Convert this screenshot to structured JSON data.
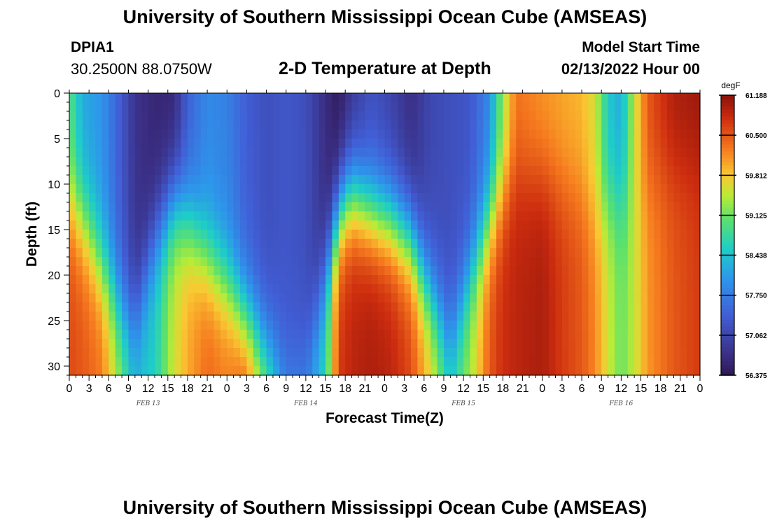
{
  "header": {
    "title": "University of Southern Mississippi Ocean Cube (AMSEAS)",
    "station": "DPIA1",
    "coordinates": "30.2500N  88.0750W",
    "subtitle": "2-D Temperature at Depth",
    "model_start_label": "Model Start Time",
    "model_start_value": "02/13/2022 Hour 00"
  },
  "footer": {
    "title": "University of Southern Mississippi Ocean Cube (AMSEAS)"
  },
  "chart_data": {
    "type": "heatmap",
    "title": "2-D Temperature at Depth",
    "xlabel": "Forecast Time(Z)",
    "ylabel": "Depth (ft)",
    "xlim": [
      0,
      96
    ],
    "ylim": [
      0,
      31
    ],
    "x_tick_values": [
      0,
      3,
      6,
      9,
      12,
      15,
      18,
      21,
      24,
      27,
      30,
      33,
      36,
      39,
      42,
      45,
      48,
      51,
      54,
      57,
      60,
      63,
      66,
      69,
      72,
      75,
      78,
      81,
      84,
      87,
      90,
      93,
      96
    ],
    "x_tick_labels": [
      "0",
      "3",
      "6",
      "9",
      "12",
      "15",
      "18",
      "21",
      "0",
      "3",
      "6",
      "9",
      "12",
      "15",
      "18",
      "21",
      "0",
      "3",
      "6",
      "9",
      "12",
      "15",
      "18",
      "21",
      "0",
      "3",
      "6",
      "9",
      "12",
      "15",
      "18",
      "21",
      "0"
    ],
    "y_tick_values": [
      0,
      5,
      10,
      15,
      20,
      25,
      30
    ],
    "y_tick_labels": [
      "0",
      "5",
      "10",
      "15",
      "20",
      "25",
      "30"
    ],
    "date_labels": [
      {
        "label": "FEB 13",
        "hour": 12
      },
      {
        "label": "FEB 14",
        "hour": 36
      },
      {
        "label": "FEB 15",
        "hour": 60
      },
      {
        "label": "FEB 16",
        "hour": 84
      }
    ],
    "colorbar": {
      "unit": "degF",
      "tick_values": [
        61.188,
        60.5,
        59.812,
        59.125,
        58.438,
        57.75,
        57.062,
        56.375
      ],
      "tick_labels": [
        "61.188",
        "60.500",
        "59.812",
        "59.125",
        "58.438",
        "57.750",
        "57.062",
        "56.375"
      ],
      "range": [
        56.2,
        61.3
      ]
    },
    "time_step_hours": 1,
    "depths_ft": [
      0,
      1,
      2,
      3,
      4,
      5,
      6,
      7,
      8,
      9,
      10,
      11,
      12,
      13,
      14,
      15,
      16,
      17,
      18,
      19,
      20,
      21,
      22,
      23,
      24,
      25,
      26,
      27,
      28,
      29,
      30,
      31
    ],
    "temperature_profiles_degF": [
      {
        "hour": 0,
        "surface": 59.0,
        "thermocline_ft": 12,
        "bottom": 60.6
      },
      {
        "hour": 2,
        "surface": 58.2,
        "thermocline_ft": 14,
        "bottom": 60.5
      },
      {
        "hour": 5,
        "surface": 58.0,
        "thermocline_ft": 19,
        "bottom": 60.3
      },
      {
        "hour": 8,
        "surface": 57.3,
        "thermocline_ft": 24,
        "bottom": 59.2
      },
      {
        "hour": 10,
        "surface": 56.8,
        "thermocline_ft": 25,
        "bottom": 58.4
      },
      {
        "hour": 13,
        "surface": 56.6,
        "thermocline_ft": 16,
        "bottom": 58.6
      },
      {
        "hour": 16,
        "surface": 56.6,
        "thermocline_ft": 12,
        "bottom": 59.6
      },
      {
        "hour": 18,
        "surface": 57.4,
        "thermocline_ft": 14,
        "bottom": 60.0
      },
      {
        "hour": 21,
        "surface": 57.9,
        "thermocline_ft": 18,
        "bottom": 60.4
      },
      {
        "hour": 24,
        "surface": 57.8,
        "thermocline_ft": 21,
        "bottom": 60.3
      },
      {
        "hour": 27,
        "surface": 57.4,
        "thermocline_ft": 25,
        "bottom": 60.6
      },
      {
        "hour": 30,
        "surface": 57.2,
        "thermocline_ft": 28,
        "bottom": 59.4
      },
      {
        "hour": 33,
        "surface": 57.3,
        "thermocline_ft": 30,
        "bottom": 58.0
      },
      {
        "hour": 36,
        "surface": 57.2,
        "thermocline_ft": 29,
        "bottom": 57.9
      },
      {
        "hour": 39,
        "surface": 56.7,
        "thermocline_ft": 20,
        "bottom": 58.7
      },
      {
        "hour": 41,
        "surface": 56.4,
        "thermocline_ft": 13,
        "bottom": 60.7
      },
      {
        "hour": 43,
        "surface": 56.8,
        "thermocline_ft": 11,
        "bottom": 60.9
      },
      {
        "hour": 46,
        "surface": 57.2,
        "thermocline_ft": 13,
        "bottom": 61.0
      },
      {
        "hour": 49,
        "surface": 57.0,
        "thermocline_ft": 14,
        "bottom": 60.9
      },
      {
        "hour": 52,
        "surface": 56.7,
        "thermocline_ft": 16,
        "bottom": 60.6
      },
      {
        "hour": 55,
        "surface": 57.1,
        "thermocline_ft": 22,
        "bottom": 59.8
      },
      {
        "hour": 58,
        "surface": 57.2,
        "thermocline_ft": 27,
        "bottom": 58.7
      },
      {
        "hour": 61,
        "surface": 57.3,
        "thermocline_ft": 20,
        "bottom": 59.4
      },
      {
        "hour": 64,
        "surface": 57.9,
        "thermocline_ft": 14,
        "bottom": 60.5
      },
      {
        "hour": 66,
        "surface": 59.3,
        "thermocline_ft": 11,
        "bottom": 60.8
      },
      {
        "hour": 68,
        "surface": 60.3,
        "thermocline_ft": 9,
        "bottom": 60.9
      },
      {
        "hour": 72,
        "surface": 60.1,
        "thermocline_ft": 9,
        "bottom": 61.0
      },
      {
        "hour": 75,
        "surface": 60.0,
        "thermocline_ft": 10,
        "bottom": 60.7
      },
      {
        "hour": 78,
        "surface": 59.9,
        "thermocline_ft": 11,
        "bottom": 60.5
      },
      {
        "hour": 80,
        "surface": 59.6,
        "thermocline_ft": 13,
        "bottom": 60.2
      },
      {
        "hour": 82,
        "surface": 58.5,
        "thermocline_ft": 12,
        "bottom": 59.6
      },
      {
        "hour": 84,
        "surface": 58.2,
        "thermocline_ft": 12,
        "bottom": 59.1
      },
      {
        "hour": 86,
        "surface": 59.5,
        "thermocline_ft": 12,
        "bottom": 59.5
      },
      {
        "hour": 88,
        "surface": 60.5,
        "thermocline_ft": 10,
        "bottom": 60.1
      },
      {
        "hour": 92,
        "surface": 61.0,
        "thermocline_ft": 8,
        "bottom": 60.5
      },
      {
        "hour": 96,
        "surface": 61.1,
        "thermocline_ft": 8,
        "bottom": 60.7
      }
    ]
  }
}
